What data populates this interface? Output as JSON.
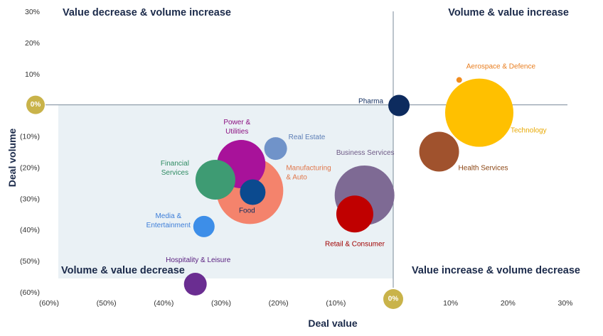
{
  "chart_data": {
    "type": "bubble",
    "xlabel": "Deal value",
    "ylabel": "Deal volume",
    "xlim": [
      -0.6,
      0.3
    ],
    "ylim": [
      -0.6,
      0.3
    ],
    "x_ticks": [
      {
        "value": -0.6,
        "label": "(60%)"
      },
      {
        "value": -0.5,
        "label": "(50%)"
      },
      {
        "value": -0.4,
        "label": "(40%)"
      },
      {
        "value": -0.3,
        "label": "(30%)"
      },
      {
        "value": -0.2,
        "label": "(20%)"
      },
      {
        "value": -0.1,
        "label": "(10%)"
      },
      {
        "value": 0.1,
        "label": "10%"
      },
      {
        "value": 0.2,
        "label": "20%"
      },
      {
        "value": 0.3,
        "label": "30%"
      }
    ],
    "y_ticks": [
      {
        "value": 0.3,
        "label": "30%"
      },
      {
        "value": 0.2,
        "label": "20%"
      },
      {
        "value": 0.1,
        "label": "10%"
      },
      {
        "value": -0.1,
        "label": "(10%)"
      },
      {
        "value": -0.2,
        "label": "(20%)"
      },
      {
        "value": -0.3,
        "label": "(30%)"
      },
      {
        "value": -0.4,
        "label": "(40%)"
      },
      {
        "value": -0.5,
        "label": "(50%)"
      },
      {
        "value": -0.6,
        "label": "(60%)"
      }
    ],
    "zero_label": "0%",
    "quadrant_labels": {
      "top_left": "Value decrease & volume increase",
      "top_right": "Volume & value increase",
      "bottom_left": "Volume & value decrease",
      "bottom_right": "Value increase & volume decrease"
    },
    "colors": {
      "quadrant_shade": "#eaf1f5",
      "axis_line": "#7a8a99",
      "zero_badge": "#c9b34a",
      "dark_text": "#1b2a4a"
    },
    "series": [
      {
        "name": "Technology",
        "x": 0.15,
        "y": -0.025,
        "size": 48,
        "color": "#ffc000",
        "label_color": "#e8a800"
      },
      {
        "name": "Aerospace & Defence",
        "x": 0.115,
        "y": 0.08,
        "size": 4,
        "color": "#f08c1e",
        "label_color": "#e87d1e"
      },
      {
        "name": "Health Services",
        "x": 0.08,
        "y": -0.15,
        "size": 28,
        "color": "#a0522d",
        "label_color": "#8b4513"
      },
      {
        "name": "Pharma",
        "x": 0.01,
        "y": -0.002,
        "size": 15,
        "color": "#0d2b5e",
        "label_color": "#0d2b5e"
      },
      {
        "name": "Business Services",
        "x": -0.05,
        "y": -0.29,
        "size": 42,
        "color": "#7e6a94",
        "label_color": "#6e5a86"
      },
      {
        "name": "Retail & Consumer",
        "x": -0.067,
        "y": -0.35,
        "size": 26,
        "color": "#c00000",
        "label_color": "#a00000"
      },
      {
        "name": "Real Estate",
        "x": -0.205,
        "y": -0.14,
        "size": 16,
        "color": "#7093c9",
        "label_color": "#5b7db5"
      },
      {
        "name": "Manufacturing & Auto",
        "x": -0.25,
        "y": -0.275,
        "size": 47,
        "color": "#f4836c",
        "label_color": "#e0764a"
      },
      {
        "name": "Power & Utilities",
        "x": -0.265,
        "y": -0.19,
        "size": 34,
        "color": "#a8129a",
        "label_color": "#8b0f80"
      },
      {
        "name": "Food",
        "x": -0.245,
        "y": -0.28,
        "size": 18,
        "color": "#0b4a8f",
        "label_color": "#0d2b5e"
      },
      {
        "name": "Financial Services",
        "x": -0.31,
        "y": -0.24,
        "size": 28,
        "color": "#3e9b73",
        "label_color": "#2e8b62"
      },
      {
        "name": "Media & Entertainment",
        "x": -0.33,
        "y": -0.39,
        "size": 15,
        "color": "#3d8ee8",
        "label_color": "#3d7ed8"
      },
      {
        "name": "Hospitality & Leisure",
        "x": -0.345,
        "y": -0.575,
        "size": 16,
        "color": "#6a2d91",
        "label_color": "#5a2080"
      }
    ]
  }
}
